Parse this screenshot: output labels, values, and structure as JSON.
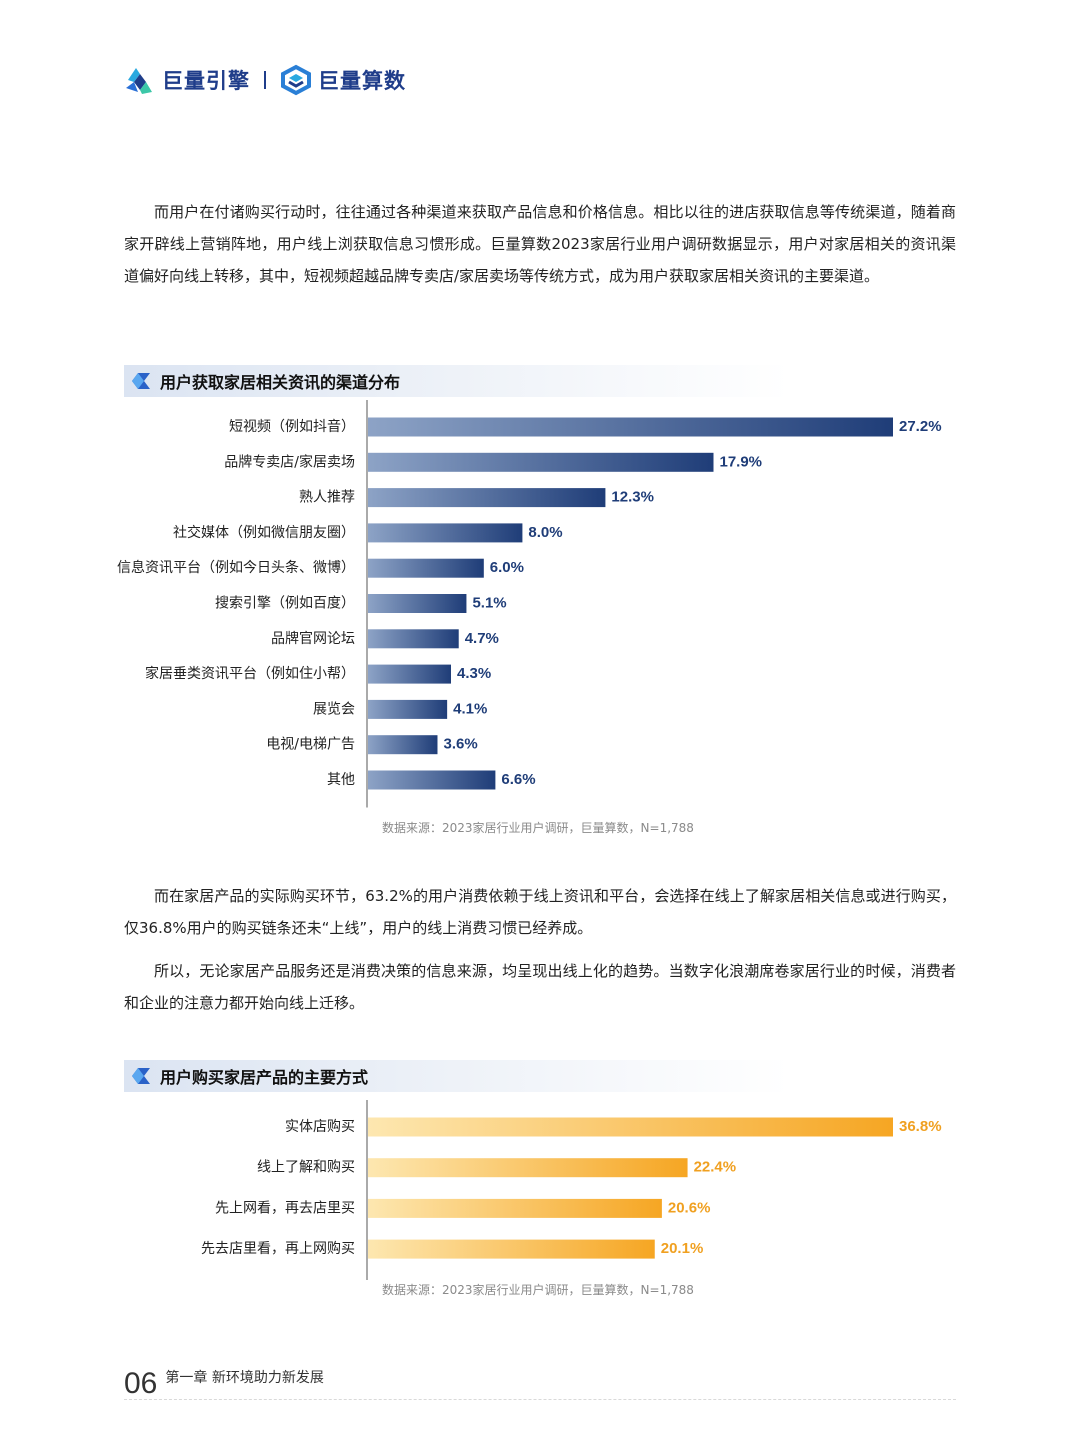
{
  "header": {
    "brand1": "巨量引擎",
    "brand2": "巨量算数"
  },
  "paragraphs": {
    "p1": "而用户在付诸购买行动时，往往通过各种渠道来获取产品信息和价格信息。相比以往的进店获取信息等传统渠道，随着商家开辟线上营销阵地，用户线上浏获取信息习惯形成。巨量算数2023家居行业用户调研数据显示，用户对家居相关的资讯渠道偏好向线上转移，其中，短视频超越品牌专卖店/家居卖场等传统方式，成为用户获取家居相关资讯的主要渠道。",
    "p2": "而在家居产品的实际购买环节，63.2%的用户消费依赖于线上资讯和平台，会选择在线上了解家居相关信息或进行购买，仅36.8%用户的购买链条还未“上线”，用户的线上消费习惯已经养成。",
    "p3": "所以，无论家居产品服务还是消费决策的信息来源，均呈现出线上化的趋势。当数字化浪潮席卷家居行业的时候，消费者和企业的注意力都开始向线上迁移。"
  },
  "section1": {
    "title": "用户获取家居相关资讯的渠道分布",
    "source": "数据来源：2023家居行业用户调研，巨量算数，N=1,788"
  },
  "section2": {
    "title": "用户购买家居产品的主要方式",
    "source": "数据来源：2023家居行业用户调研，巨量算数，N=1,788"
  },
  "colors": {
    "chart1_start": "#8da3c6",
    "chart1_end": "#1f3d78",
    "chart1_label": "#1f3d78",
    "chart2_start": "#fde7b0",
    "chart2_end": "#f6a623",
    "chart2_label": "#f0a020"
  },
  "chart_data": [
    {
      "type": "bar",
      "orientation": "horizontal",
      "categories": [
        "短视频（例如抖音）",
        "品牌专卖店/家居卖场",
        "熟人推荐",
        "社交媒体（例如微信朋友圈）",
        "信息资讯平台（例如今日头条、微博）",
        "搜索引擎（例如百度）",
        "品牌官网论坛",
        "家居垂类资讯平台（例如住小帮）",
        "展览会",
        "电视/电梯广告",
        "其他"
      ],
      "values": [
        27.2,
        17.9,
        12.3,
        8.0,
        6.0,
        5.1,
        4.7,
        4.3,
        4.1,
        3.6,
        6.6
      ],
      "value_labels": [
        "27.2%",
        "17.9%",
        "12.3%",
        "8.0%",
        "6.0%",
        "5.1%",
        "4.7%",
        "4.3%",
        "4.1%",
        "3.6%",
        "6.6%"
      ],
      "title": "用户获取家居相关资讯的渠道分布",
      "xlim": [
        0,
        27.2
      ]
    },
    {
      "type": "bar",
      "orientation": "horizontal",
      "categories": [
        "实体店购买",
        "线上了解和购买",
        "先上网看，再去店里买",
        "先去店里看，再上网购买"
      ],
      "values": [
        36.8,
        22.4,
        20.6,
        20.1
      ],
      "value_labels": [
        "36.8%",
        "22.4%",
        "20.6%",
        "20.1%"
      ],
      "title": "用户购买家居产品的主要方式",
      "xlim": [
        0,
        36.8
      ]
    }
  ],
  "footer": {
    "page": "06",
    "chapter": "第一章  新环境助力新发展"
  }
}
